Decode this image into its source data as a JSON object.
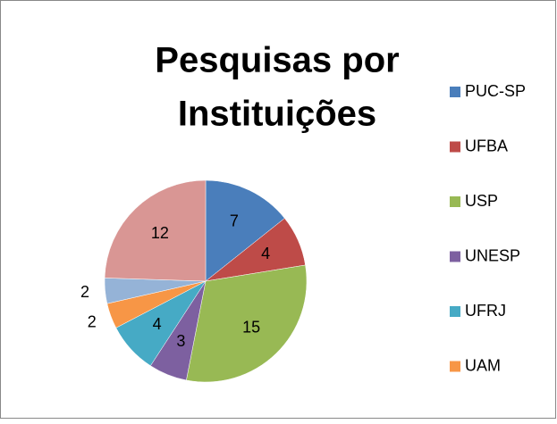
{
  "chart_data": {
    "type": "pie",
    "title": "Pesquisas por Instituições",
    "categories": [
      "PUC-SP",
      "UFBA",
      "USP",
      "UNESP",
      "UFRJ",
      "UAM",
      null,
      null
    ],
    "values": [
      7,
      4,
      15,
      3,
      4,
      2,
      2,
      12
    ],
    "colors": [
      "#4a7ebb",
      "#be4b48",
      "#98b954",
      "#7d60a0",
      "#46aac5",
      "#f79646",
      "#95b3d7",
      "#d99694"
    ],
    "legend": "right"
  }
}
